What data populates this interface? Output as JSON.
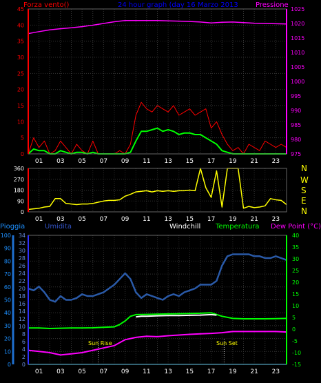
{
  "chart_data": [
    {
      "type": "line",
      "title": "24 hour graph (day   16 Marzo 2013",
      "xlabel": "",
      "left_axis_label": "Forza vento()",
      "right_axis_label": "Pressione",
      "x_tick_labels": [
        "01",
        "03",
        "05",
        "07",
        "09",
        "11",
        "13",
        "15",
        "17",
        "19",
        "21",
        "23"
      ],
      "ylim_left": [
        0,
        45
      ],
      "ylim_right": [
        975,
        1025
      ],
      "y_ticks_left": [
        0,
        5,
        10,
        15,
        20,
        25,
        30,
        35,
        40,
        45
      ],
      "y_ticks_right": [
        975,
        980,
        985,
        990,
        995,
        1000,
        1005,
        1010,
        1015,
        1020,
        1025
      ],
      "grid": true,
      "colors": {
        "wind_gust": "#ff0000",
        "wind_avg": "#00ff00",
        "pressure": "#ff00ff",
        "left_axis": "#ff0000",
        "right_axis": "#ff00ff",
        "title": "#0000ff"
      },
      "series": [
        {
          "name": "Pressione",
          "axis": "right",
          "x": [
            0,
            1,
            2,
            3,
            4,
            5,
            6,
            7,
            8,
            9,
            10,
            11,
            12,
            13,
            14,
            15,
            16,
            17,
            18,
            19,
            20,
            21,
            22,
            23,
            24
          ],
          "y": [
            1016.5,
            1017.2,
            1017.8,
            1018.2,
            1018.5,
            1018.9,
            1019.4,
            1020.0,
            1020.6,
            1021.0,
            1021.0,
            1021.0,
            1021.0,
            1020.9,
            1020.8,
            1020.7,
            1020.5,
            1020.2,
            1020.4,
            1020.5,
            1020.3,
            1020.1,
            1020.0,
            1019.9,
            1019.8
          ]
        },
        {
          "name": "",
          "axis": "left",
          "x": [
            0,
            0.5,
            1,
            1.5,
            2,
            2.5,
            3,
            3.5,
            4,
            4.5,
            5,
            5.5,
            6,
            6.5,
            7,
            7.5,
            8,
            8.5,
            9,
            9.5,
            10,
            10.5,
            11,
            11.5,
            12,
            12.5,
            13,
            13.5,
            14,
            14.5,
            15,
            15.5,
            16,
            16.5,
            17,
            17.5,
            18,
            18.5,
            19,
            19.5,
            20,
            20.5,
            21,
            21.5,
            22,
            22.5,
            23,
            23.5,
            24
          ],
          "y": [
            0,
            5,
            2,
            4,
            0,
            1,
            4,
            2,
            0,
            3,
            1,
            0,
            4,
            0,
            0,
            0,
            0,
            1,
            0,
            3,
            12,
            16,
            14,
            13,
            15,
            14,
            13,
            15,
            12,
            13,
            14,
            12,
            13,
            14,
            8,
            10,
            6,
            3,
            1,
            2,
            0,
            3,
            2,
            1,
            4,
            3,
            2,
            3,
            2
          ]
        },
        {
          "name": "",
          "axis": "left",
          "x": [
            0,
            0.5,
            1,
            1.5,
            2,
            2.5,
            3,
            3.5,
            4,
            4.5,
            5,
            5.5,
            6,
            6.5,
            7,
            7.5,
            8,
            8.5,
            9,
            9.5,
            10,
            10.5,
            11,
            11.5,
            12,
            12.5,
            13,
            13.5,
            14,
            14.5,
            15,
            15.5,
            16,
            16.5,
            17,
            17.5,
            18,
            18.5,
            19,
            19.5,
            20,
            20.5,
            21,
            21.5,
            22,
            22.5,
            23,
            23.5,
            24
          ],
          "y": [
            0,
            1.5,
            1,
            1,
            0,
            0,
            1,
            0.5,
            0,
            0.5,
            0.5,
            0,
            0.5,
            0,
            0,
            0,
            0,
            0,
            0,
            0.5,
            4,
            7,
            7,
            7.5,
            8,
            7,
            7.5,
            7,
            6,
            6.5,
            6.5,
            6,
            6,
            5,
            4,
            3,
            1,
            0.5,
            0,
            0,
            0,
            0,
            0,
            0,
            0,
            0,
            0,
            0,
            0
          ]
        }
      ]
    },
    {
      "type": "line",
      "title": "",
      "left_axis_label": "",
      "right_axis_label": "N W S E N",
      "direction_letters": [
        "N",
        "W",
        "S",
        "E",
        "N"
      ],
      "x_tick_labels": [
        "01",
        "03",
        "05",
        "07",
        "09",
        "11",
        "13",
        "15",
        "17",
        "19",
        "21",
        "23"
      ],
      "ylim_left": [
        0,
        360
      ],
      "y_ticks_left": [
        0,
        90,
        180,
        270,
        360
      ],
      "grid": true,
      "colors": {
        "direction": "#ffff00",
        "axis": "#ff0000",
        "letters": "#ffff00"
      },
      "series": [
        {
          "name": "",
          "x": [
            0,
            0.5,
            1,
            1.5,
            2,
            2.5,
            3,
            3.5,
            4,
            4.5,
            5,
            5.5,
            6,
            6.5,
            7,
            7.5,
            8,
            8.5,
            9,
            9.5,
            10,
            10.5,
            11,
            11.5,
            12,
            12.5,
            13,
            13.5,
            14,
            14.5,
            15,
            15.5,
            16,
            16.5,
            17,
            17.5,
            18,
            18.5,
            19,
            19.5,
            20,
            20.5,
            21,
            21.5,
            22,
            22.5,
            23,
            23.5,
            24
          ],
          "y": [
            20,
            25,
            30,
            40,
            45,
            110,
            110,
            70,
            65,
            60,
            65,
            65,
            70,
            80,
            90,
            95,
            95,
            100,
            130,
            145,
            165,
            170,
            175,
            165,
            175,
            170,
            175,
            170,
            175,
            175,
            180,
            175,
            360,
            200,
            120,
            340,
            40,
            360,
            360,
            360,
            30,
            45,
            35,
            40,
            50,
            110,
            100,
            95,
            60
          ]
        }
      ]
    },
    {
      "type": "line",
      "title": "",
      "legend": [
        "Pioggia",
        "Umidita",
        "Windchill",
        "Temperatura",
        "Dew Point (°C)"
      ],
      "x_tick_labels": [
        "01",
        "03",
        "05",
        "07",
        "09",
        "11",
        "13",
        "15",
        "17",
        "19",
        "21",
        "23"
      ],
      "annotations": [
        "Sun Rise",
        "Sun Set"
      ],
      "ylim_rain": [
        0,
        100
      ],
      "y_ticks_rain": [
        0,
        10,
        20,
        30,
        40,
        50,
        60,
        70,
        80,
        90,
        100
      ],
      "ylim_humidity": [
        0,
        34
      ],
      "y_ticks_humidity": [
        0,
        2,
        4,
        6,
        8,
        10,
        12,
        14,
        16,
        18,
        20,
        22,
        24,
        26,
        28,
        30,
        32,
        34
      ],
      "ylim_temperature": [
        -15,
        40
      ],
      "y_ticks_temperature": [
        -15,
        -10,
        -5,
        0,
        5,
        10,
        15,
        20,
        25,
        30,
        35,
        40
      ],
      "grid": true,
      "colors": {
        "rain": "#00bfff",
        "humidity": "#2a5aa8",
        "windchill": "#ffffff",
        "temperature": "#00ff00",
        "dewpoint": "#ff00ff",
        "rain_axis": "#1e6fd0",
        "humidity_axis": "#3030ff",
        "temp_axis": "#00ff00"
      },
      "series": [
        {
          "name": "Umidita",
          "axis": "humidity",
          "x": [
            0,
            0.5,
            1,
            1.5,
            2,
            2.5,
            3,
            3.5,
            4,
            4.5,
            5,
            5.5,
            6,
            6.5,
            7,
            7.5,
            8,
            8.5,
            9,
            9.5,
            10,
            10.5,
            11,
            11.5,
            12,
            12.5,
            13,
            13.5,
            14,
            14.5,
            15,
            15.5,
            16,
            16.5,
            17,
            17.5,
            18,
            18.5,
            19,
            19.5,
            20,
            20.5,
            21,
            21.5,
            22,
            22.5,
            23,
            23.5,
            24
          ],
          "y": [
            20,
            19.5,
            20.5,
            19,
            17,
            16.5,
            18,
            17,
            17,
            17.5,
            18.5,
            18,
            18,
            18.5,
            19,
            20,
            21,
            22.5,
            24,
            22.5,
            19,
            17.5,
            18.5,
            18,
            17.5,
            17,
            18,
            18.5,
            18,
            19,
            19.5,
            20,
            21,
            21,
            21,
            22,
            26,
            28.5,
            29,
            29,
            29,
            29,
            28.5,
            28.5,
            28,
            28,
            28.5,
            28,
            27.5
          ]
        },
        {
          "name": "Temperatura",
          "axis": "temperature",
          "x": [
            0,
            1,
            2,
            3,
            4,
            5,
            6,
            7,
            8,
            8.5,
            9,
            9.5,
            10,
            11,
            12,
            13,
            14,
            15,
            16,
            17,
            18,
            19,
            20,
            21,
            22,
            23,
            24
          ],
          "y": [
            0.5,
            0.5,
            0.3,
            0.4,
            0.5,
            0.5,
            0.6,
            0.8,
            1.0,
            2.0,
            3.5,
            5.5,
            6.2,
            6.3,
            6.4,
            6.5,
            6.6,
            6.7,
            6.8,
            7.0,
            5.5,
            4.6,
            4.4,
            4.4,
            4.4,
            4.5,
            4.6
          ]
        },
        {
          "name": "Windchill",
          "axis": "temperature",
          "x": [
            10,
            10.5,
            11,
            12,
            13,
            14,
            15,
            16,
            17,
            17.5
          ],
          "y": [
            5.2,
            5.5,
            5.5,
            5.7,
            5.8,
            5.8,
            5.9,
            6.0,
            6.2,
            6.0
          ]
        },
        {
          "name": "Dew Point (°C)",
          "axis": "temperature",
          "x": [
            0,
            1,
            2,
            3,
            4,
            5,
            6,
            7,
            8,
            9,
            10,
            11,
            12,
            13,
            14,
            15,
            16,
            17,
            18,
            19,
            20,
            21,
            22,
            23,
            24
          ],
          "y": [
            -9,
            -9.5,
            -10,
            -11,
            -10.5,
            -10,
            -9,
            -8,
            -7,
            -4.5,
            -3.5,
            -3,
            -3.2,
            -2.8,
            -2.5,
            -2.2,
            -2,
            -1.8,
            -1.5,
            -1,
            -1,
            -1,
            -1,
            -1,
            -1.2
          ]
        },
        {
          "name": "Pioggia",
          "axis": "rain",
          "x": [
            0,
            24
          ],
          "y": [
            0,
            0
          ]
        }
      ]
    }
  ]
}
